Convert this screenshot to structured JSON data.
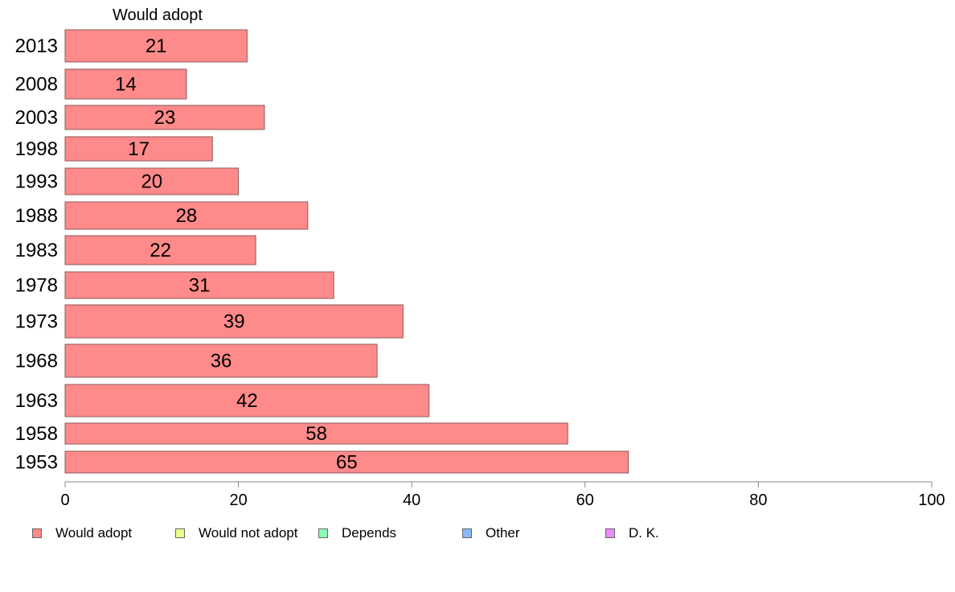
{
  "chart_data": {
    "type": "bar",
    "orientation": "horizontal",
    "column_header": "Would adopt",
    "categories": [
      "2013",
      "2008",
      "2003",
      "1998",
      "1993",
      "1988",
      "1983",
      "1978",
      "1973",
      "1968",
      "1963",
      "1958",
      "1953"
    ],
    "series": [
      {
        "name": "Would adopt",
        "color": "#ff8a8a",
        "values": [
          21,
          14,
          23,
          17,
          20,
          28,
          22,
          31,
          39,
          36,
          42,
          58,
          65
        ]
      }
    ],
    "xlim": [
      0,
      100
    ],
    "xticks": [
      0,
      20,
      40,
      60,
      80,
      100
    ],
    "grid": false,
    "legend_position": "bottom-left",
    "legend": [
      {
        "label": "Would adopt",
        "color": "#ff8a8a"
      },
      {
        "label": "Would not adopt",
        "color": "#ecff8a"
      },
      {
        "label": "Depends",
        "color": "#8affb9"
      },
      {
        "label": "Other",
        "color": "#8ab9ff"
      },
      {
        "label": "D. K.",
        "color": "#ec8aff"
      }
    ]
  }
}
